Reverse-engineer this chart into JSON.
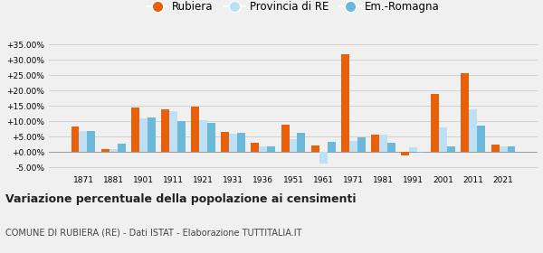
{
  "years": [
    1871,
    1881,
    1901,
    1911,
    1921,
    1931,
    1936,
    1951,
    1961,
    1971,
    1981,
    1991,
    2001,
    2011,
    2021
  ],
  "rubiera": [
    8.3,
    1.0,
    14.5,
    14.0,
    14.8,
    6.5,
    3.0,
    8.8,
    2.2,
    31.8,
    5.7,
    -1.0,
    18.8,
    25.7,
    2.3
  ],
  "provincia": [
    6.8,
    1.0,
    11.0,
    13.2,
    10.5,
    5.9,
    2.0,
    4.2,
    -3.8,
    3.5,
    5.6,
    1.7,
    8.0,
    13.8,
    1.8
  ],
  "emiliaromagna": [
    6.9,
    2.7,
    11.2,
    10.2,
    9.5,
    6.2,
    2.0,
    6.2,
    3.2,
    4.8,
    2.9,
    -0.3,
    1.9,
    8.7,
    1.8
  ],
  "color_rubiera": "#E8600A",
  "color_provincia": "#BEE0F5",
  "color_emilia": "#6BB8D8",
  "title": "Variazione percentuale della popolazione ai censimenti",
  "subtitle": "COMUNE DI RUBIERA (RE) - Dati ISTAT - Elaborazione TUTTITALIA.IT",
  "legend_labels": [
    "Rubiera",
    "Provincia di RE",
    "Em.-Romagna"
  ],
  "ylim": [
    -6.5,
    38
  ],
  "yticks": [
    -5,
    0,
    5,
    10,
    15,
    20,
    25,
    30,
    35
  ],
  "background_color": "#f0f0f0",
  "bar_width": 0.27
}
